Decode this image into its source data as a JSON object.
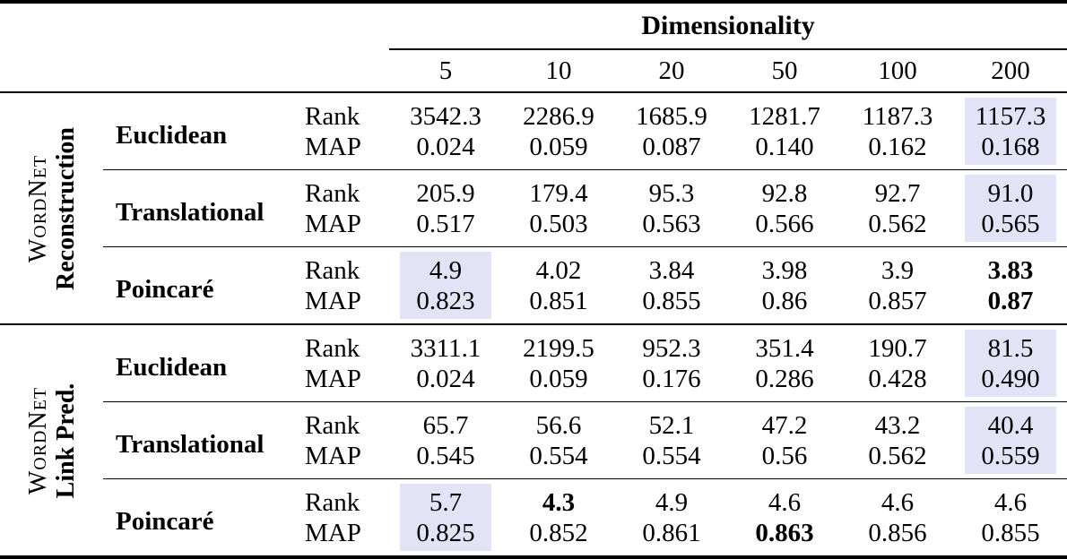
{
  "table": {
    "header": {
      "title": "Dimensionality",
      "columns": [
        "5",
        "10",
        "20",
        "50",
        "100",
        "200"
      ]
    },
    "colors": {
      "highlight": "#e3e3f7",
      "rule": "#000000"
    },
    "groups": [
      {
        "label_line1": "WordNet",
        "label_line2": "Reconstruction",
        "methods": [
          {
            "name": "Euclidean",
            "rows": [
              {
                "metric": "Rank",
                "values": [
                  "3542.3",
                  "2286.9",
                  "1685.9",
                  "1281.7",
                  "1187.3",
                  "1157.3"
                ],
                "highlight": [
                  5
                ],
                "bold": []
              },
              {
                "metric": "MAP",
                "values": [
                  "0.024",
                  "0.059",
                  "0.087",
                  "0.140",
                  "0.162",
                  "0.168"
                ],
                "highlight": [
                  5
                ],
                "bold": []
              }
            ]
          },
          {
            "name": "Translational",
            "rows": [
              {
                "metric": "Rank",
                "values": [
                  "205.9",
                  "179.4",
                  "95.3",
                  "92.8",
                  "92.7",
                  "91.0"
                ],
                "highlight": [
                  5
                ],
                "bold": []
              },
              {
                "metric": "MAP",
                "values": [
                  "0.517",
                  "0.503",
                  "0.563",
                  "0.566",
                  "0.562",
                  "0.565"
                ],
                "highlight": [
                  5
                ],
                "bold": []
              }
            ]
          },
          {
            "name": "Poincaré",
            "rows": [
              {
                "metric": "Rank",
                "values": [
                  "4.9",
                  "4.02",
                  "3.84",
                  "3.98",
                  "3.9",
                  "3.83"
                ],
                "highlight": [
                  0
                ],
                "bold": [
                  5
                ]
              },
              {
                "metric": "MAP",
                "values": [
                  "0.823",
                  "0.851",
                  "0.855",
                  "0.86",
                  "0.857",
                  "0.87"
                ],
                "highlight": [
                  0
                ],
                "bold": [
                  5
                ]
              }
            ]
          }
        ]
      },
      {
        "label_line1": "WordNet",
        "label_line2": "Link Pred.",
        "methods": [
          {
            "name": "Euclidean",
            "rows": [
              {
                "metric": "Rank",
                "values": [
                  "3311.1",
                  "2199.5",
                  "952.3",
                  "351.4",
                  "190.7",
                  "81.5"
                ],
                "highlight": [
                  5
                ],
                "bold": []
              },
              {
                "metric": "MAP",
                "values": [
                  "0.024",
                  "0.059",
                  "0.176",
                  "0.286",
                  "0.428",
                  "0.490"
                ],
                "highlight": [
                  5
                ],
                "bold": []
              }
            ]
          },
          {
            "name": "Translational",
            "rows": [
              {
                "metric": "Rank",
                "values": [
                  "65.7",
                  "56.6",
                  "52.1",
                  "47.2",
                  "43.2",
                  "40.4"
                ],
                "highlight": [
                  5
                ],
                "bold": []
              },
              {
                "metric": "MAP",
                "values": [
                  "0.545",
                  "0.554",
                  "0.554",
                  "0.56",
                  "0.562",
                  "0.559"
                ],
                "highlight": [
                  5
                ],
                "bold": []
              }
            ]
          },
          {
            "name": "Poincaré",
            "rows": [
              {
                "metric": "Rank",
                "values": [
                  "5.7",
                  "4.3",
                  "4.9",
                  "4.6",
                  "4.6",
                  "4.6"
                ],
                "highlight": [
                  0
                ],
                "bold": [
                  1
                ]
              },
              {
                "metric": "MAP",
                "values": [
                  "0.825",
                  "0.852",
                  "0.861",
                  "0.863",
                  "0.856",
                  "0.855"
                ],
                "highlight": [
                  0
                ],
                "bold": [
                  3
                ]
              }
            ]
          }
        ]
      }
    ]
  }
}
